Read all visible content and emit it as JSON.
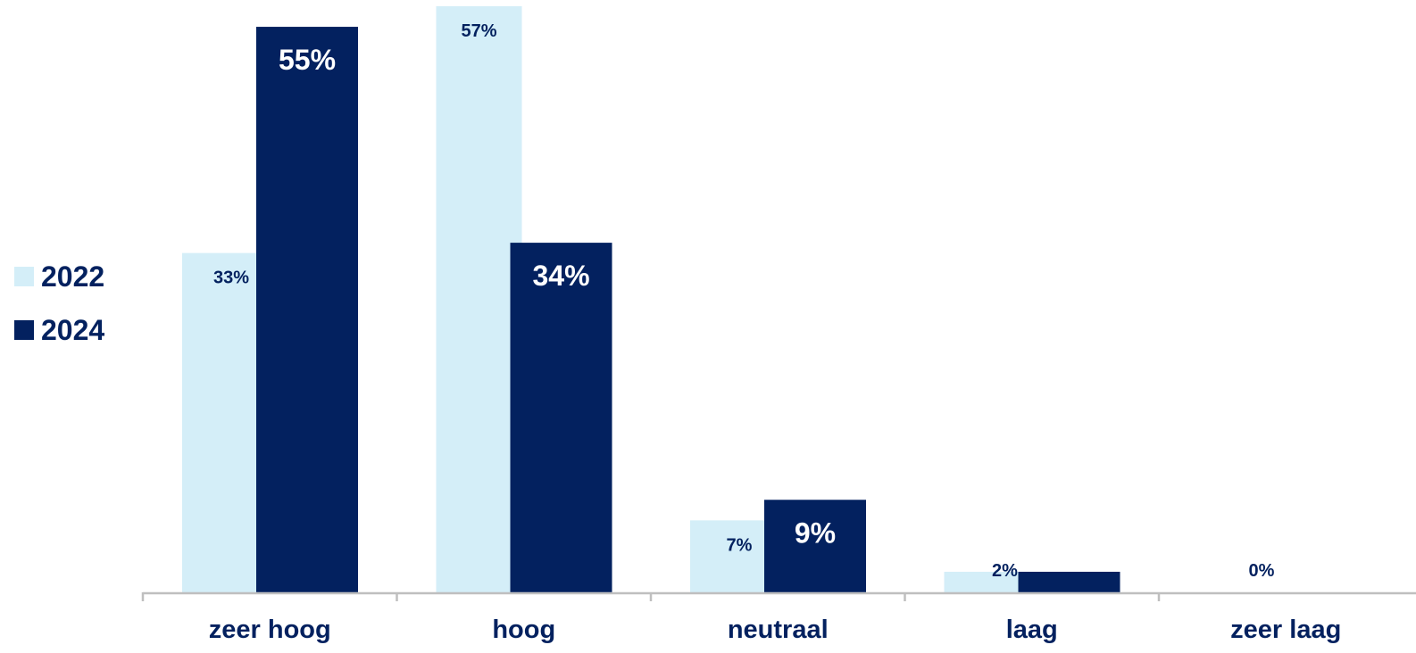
{
  "chart_data": {
    "type": "bar",
    "categories": [
      "zeer hoog",
      "hoog",
      "neutraal",
      "laag",
      "zeer laag"
    ],
    "series": [
      {
        "name": "2022",
        "color": "#d4eef8",
        "values": [
          33,
          57,
          7,
          2,
          0
        ],
        "labels": [
          "33%",
          "57%",
          "7%",
          "2%",
          "0%"
        ]
      },
      {
        "name": "2024",
        "color": "#03215f",
        "values": [
          55,
          34,
          9,
          2,
          0
        ],
        "labels": [
          "55%",
          "34%",
          "9%",
          "",
          ""
        ]
      }
    ],
    "title": "",
    "xlabel": "",
    "ylabel": "",
    "ylim": [
      0,
      57
    ],
    "grid": false,
    "legend_position": "left"
  }
}
